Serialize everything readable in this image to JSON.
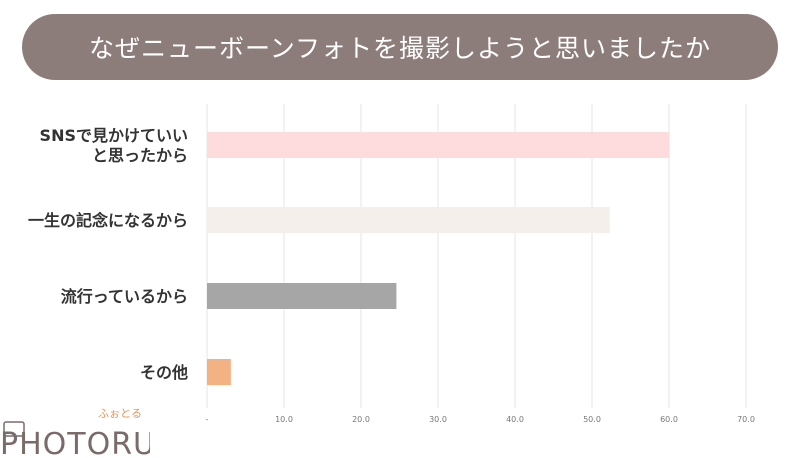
{
  "header": {
    "title": "なぜニューボーンフォトを撮影しようと思いましたか"
  },
  "colors": {
    "title_bg": "#8c7d7a",
    "grid": "#e6e6e6"
  },
  "chart_data": {
    "type": "bar",
    "orientation": "horizontal",
    "title": "なぜニューボーンフォトを撮影しようと思いましたか",
    "categories": [
      [
        "SNSで見かけていい",
        "と思ったから"
      ],
      [
        "一生の記念になるから"
      ],
      [
        "流行っているから"
      ],
      [
        "その他"
      ]
    ],
    "values": [
      60.0,
      52.3,
      24.6,
      3.1
    ],
    "colors": [
      "#fedbdc",
      "#f5efeb",
      "#a6a6a6",
      "#f4b183"
    ],
    "xlim": [
      0,
      70
    ],
    "ticks": [
      "-",
      "10.0",
      "20.0",
      "30.0",
      "40.0",
      "50.0",
      "60.0",
      "70.0"
    ],
    "tick_values": [
      0,
      10,
      20,
      30,
      40,
      50,
      60,
      70
    ],
    "grid": true,
    "legend": "none"
  },
  "logo": {
    "text": "PHOTORU",
    "kana": "ふぉとる"
  }
}
